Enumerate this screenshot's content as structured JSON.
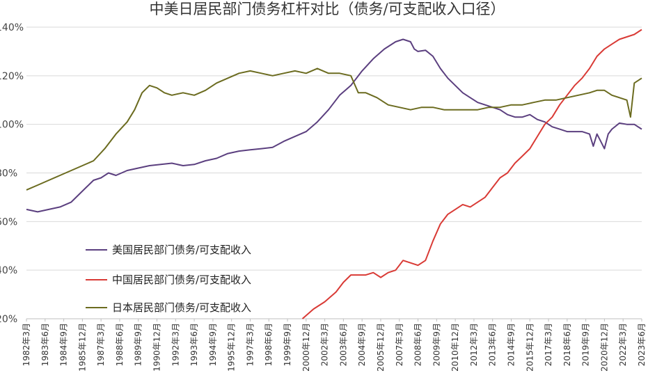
{
  "chart_data": {
    "type": "line",
    "title": "中美日居民部门债务杠杆对比（债务/可支配收入口径）",
    "xlabel": "",
    "ylabel": "",
    "x_range": [
      "1982年3月",
      "2023年6月"
    ],
    "ylim": [
      20,
      140
    ],
    "y_ticks": [
      20,
      40,
      60,
      80,
      100,
      120,
      140
    ],
    "y_tick_labels": [
      "20%",
      "40%",
      "60%",
      "80%",
      "100%",
      "120%",
      "140%"
    ],
    "x_tick_labels": [
      "1982年3月",
      "1983年6月",
      "1984年9月",
      "1985年12月",
      "1987年3月",
      "1988年6月",
      "1989年9月",
      "1990年12月",
      "1992年3月",
      "1993年6月",
      "1994年9月",
      "1995年12月",
      "1997年3月",
      "1998年6月",
      "1999年9月",
      "2000年12月",
      "2002年3月",
      "2003年6月",
      "2004年9月",
      "2005年12月",
      "2007年3月",
      "2008年6月",
      "2009年9月",
      "2010年12月",
      "2012年3月",
      "2013年6月",
      "2014年9月",
      "2015年12月",
      "2017年3月",
      "2018年6月",
      "2019年9月",
      "2020年12月",
      "2022年3月",
      "2023年6月"
    ],
    "grid": true,
    "legend_position": "lower-left",
    "series": [
      {
        "name": "美国居民部门债务/可支配收入",
        "color": "#5b3f7f",
        "x": [
          1982.25,
          1983.0,
          1983.75,
          1984.5,
          1985.25,
          1985.75,
          1986.25,
          1986.75,
          1987.25,
          1987.75,
          1988.25,
          1989.0,
          1989.75,
          1990.5,
          1991.25,
          1992.0,
          1992.75,
          1993.5,
          1994.25,
          1995.0,
          1995.75,
          1996.5,
          1997.25,
          1998.0,
          1998.75,
          1999.5,
          2000.25,
          2001.0,
          2001.75,
          2002.5,
          2003.25,
          2004.0,
          2004.75,
          2005.5,
          2006.25,
          2007.0,
          2007.5,
          2008.0,
          2008.25,
          2008.5,
          2009.0,
          2009.5,
          2010.0,
          2010.5,
          2011.0,
          2011.5,
          2012.0,
          2012.5,
          2013.0,
          2013.5,
          2014.0,
          2014.5,
          2015.0,
          2015.5,
          2016.0,
          2016.5,
          2017.0,
          2017.5,
          2018.0,
          2018.5,
          2019.0,
          2019.5,
          2020.0,
          2020.25,
          2020.5,
          2020.75,
          2021.0,
          2021.25,
          2021.5,
          2022.0,
          2022.5,
          2023.0,
          2023.5
        ],
        "values": [
          65,
          64,
          65,
          66,
          68,
          71,
          74,
          77,
          78,
          80,
          79,
          81,
          82,
          83,
          83.5,
          84,
          83,
          83.5,
          85,
          86,
          88,
          89,
          89.5,
          90,
          90.5,
          93,
          95,
          97,
          101,
          106,
          112,
          116,
          122,
          127,
          131,
          134,
          135,
          134,
          131,
          130,
          130.5,
          128,
          123,
          119,
          116,
          113,
          111,
          109,
          108,
          107,
          106,
          104,
          103,
          103,
          104,
          102,
          101,
          99,
          98,
          97,
          97,
          97,
          96,
          91,
          96,
          93,
          90,
          96,
          98,
          100.5,
          100,
          100,
          98
        ]
      },
      {
        "name": "中国居民部门债务/可支配收入",
        "color": "#d93a35",
        "x": [
          2000.75,
          2001.5,
          2002.25,
          2003.0,
          2003.5,
          2004.0,
          2004.5,
          2005.0,
          2005.5,
          2006.0,
          2006.5,
          2007.0,
          2007.5,
          2008.0,
          2008.5,
          2009.0,
          2009.5,
          2010.0,
          2010.5,
          2011.0,
          2011.5,
          2012.0,
          2012.5,
          2013.0,
          2013.5,
          2014.0,
          2014.5,
          2015.0,
          2015.5,
          2016.0,
          2016.5,
          2017.0,
          2017.5,
          2018.0,
          2018.5,
          2019.0,
          2019.5,
          2020.0,
          2020.5,
          2021.0,
          2021.5,
          2022.0,
          2022.5,
          2023.0,
          2023.5
        ],
        "values": [
          20,
          24,
          27,
          31,
          35,
          38,
          38,
          38,
          39,
          37,
          39,
          40,
          44,
          43,
          42,
          44,
          52,
          59,
          63,
          65,
          67,
          66,
          68,
          70,
          74,
          78,
          80,
          84,
          87,
          90,
          95,
          100,
          103,
          108,
          112,
          116,
          119,
          123,
          128,
          131,
          133,
          135,
          136,
          137,
          139
        ]
      },
      {
        "name": "日本居民部门债务/可支配收入",
        "color": "#6b6b1f",
        "x": [
          1982.25,
          1983.0,
          1983.75,
          1984.5,
          1985.25,
          1986.0,
          1986.75,
          1987.5,
          1988.25,
          1989.0,
          1989.5,
          1990.0,
          1990.5,
          1991.0,
          1991.5,
          1992.0,
          1992.75,
          1993.5,
          1994.25,
          1995.0,
          1995.75,
          1996.5,
          1997.25,
          1998.0,
          1998.75,
          1999.5,
          2000.25,
          2001.0,
          2001.75,
          2002.5,
          2003.25,
          2004.0,
          2004.5,
          2005.0,
          2005.75,
          2006.5,
          2007.25,
          2008.0,
          2008.75,
          2009.5,
          2010.25,
          2011.0,
          2011.75,
          2012.5,
          2013.25,
          2014.0,
          2014.75,
          2015.5,
          2016.25,
          2017.0,
          2017.75,
          2018.5,
          2019.25,
          2020.0,
          2020.5,
          2021.0,
          2021.5,
          2022.0,
          2022.5,
          2022.75,
          2023.0,
          2023.5
        ],
        "values": [
          73,
          75,
          77,
          79,
          81,
          83,
          85,
          90,
          96,
          101,
          106,
          113,
          116,
          115,
          113,
          112,
          113,
          112,
          114,
          117,
          119,
          121,
          122,
          121,
          120,
          121,
          122,
          121,
          123,
          121,
          121,
          120,
          113,
          113,
          111,
          108,
          107,
          106,
          107,
          107,
          106,
          106,
          106,
          106,
          107,
          107,
          108,
          108,
          109,
          110,
          110,
          111,
          112,
          113,
          114,
          114,
          112,
          111,
          110,
          103,
          117,
          119
        ]
      }
    ]
  }
}
